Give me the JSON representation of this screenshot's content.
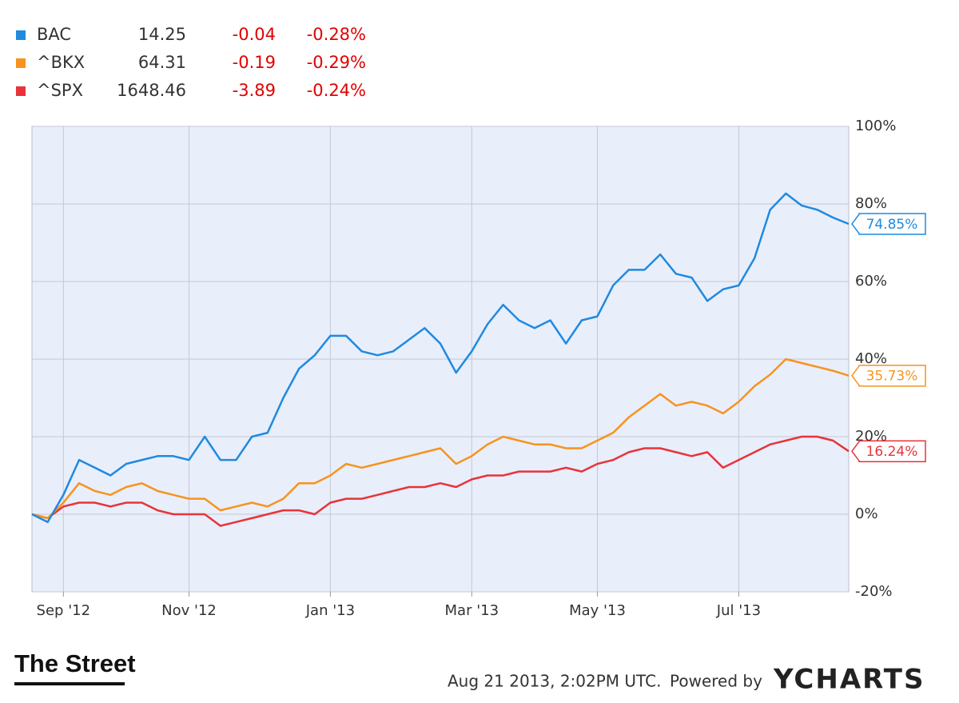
{
  "chart_data": {
    "type": "line",
    "categories": [
      null,
      null,
      "Sep '12",
      null,
      null,
      null,
      null,
      null,
      null,
      null,
      "Nov '12",
      null,
      null,
      null,
      null,
      null,
      null,
      null,
      null,
      "Jan '13",
      null,
      null,
      null,
      null,
      null,
      null,
      null,
      null,
      "Mar '13",
      null,
      null,
      null,
      null,
      null,
      null,
      null,
      "May '13",
      null,
      null,
      null,
      null,
      null,
      null,
      null,
      null,
      "Jul '13",
      null,
      null,
      null,
      null,
      null,
      null,
      null
    ],
    "series": [
      {
        "name": "BAC",
        "color": "#1f8ae0",
        "price": 14.25,
        "change": -0.04,
        "change_pct": {
          "value": -0.28,
          "label": "-0.28%"
        },
        "last_label": "74.85%",
        "values": [
          0,
          -2,
          5,
          14,
          12,
          10,
          13,
          14,
          15,
          15,
          14,
          20,
          14,
          14,
          20,
          21,
          30,
          37.5,
          41,
          46,
          46,
          42,
          41,
          42,
          45,
          48,
          44,
          36.5,
          42,
          49,
          54,
          50,
          48,
          50,
          44,
          50,
          51,
          59,
          63,
          63,
          67,
          62,
          61,
          55,
          58,
          59,
          66,
          78.5,
          82.7,
          79.6,
          78.5,
          76.5,
          74.85
        ]
      },
      {
        "name": "^BKX",
        "color": "#f7931e",
        "price": 64.31,
        "change": -0.19,
        "change_pct": {
          "value": -0.29,
          "label": "-0.29%"
        },
        "last_label": "35.73%",
        "values": [
          0,
          -1,
          3,
          8,
          6,
          5,
          7,
          8,
          6,
          5,
          4,
          4,
          1,
          2,
          3,
          2,
          4,
          8,
          8,
          10,
          13,
          12,
          13,
          14,
          15,
          16,
          17,
          13,
          15,
          18,
          20,
          19,
          18,
          18,
          17,
          17,
          19,
          21,
          25,
          28,
          31,
          28,
          29,
          28,
          26,
          29,
          33,
          36,
          40,
          39,
          38,
          37,
          35.73
        ]
      },
      {
        "name": "^SPX",
        "color": "#e8333a",
        "price": 1648.46,
        "change": -3.89,
        "change_pct": {
          "value": -0.24,
          "label": "-0.24%"
        },
        "last_label": "16.24%",
        "values": [
          0,
          -1,
          2,
          3,
          3,
          2,
          3,
          3,
          1,
          0,
          0,
          0,
          -3,
          -2,
          -1,
          0,
          1,
          1,
          0,
          3,
          4,
          4,
          5,
          6,
          7,
          7,
          8,
          7,
          9,
          10,
          10,
          11,
          11,
          11,
          12,
          11,
          13,
          14,
          16,
          17,
          17,
          16,
          15,
          16,
          12,
          14,
          16,
          18,
          19,
          20,
          20,
          19,
          16.24
        ]
      }
    ],
    "ylim": [
      -20,
      100
    ],
    "yticks": [
      {
        "value": -20,
        "label": "-20%"
      },
      {
        "value": 0,
        "label": "0%"
      },
      {
        "value": 20,
        "label": "20%"
      },
      {
        "value": 40,
        "label": "40%"
      },
      {
        "value": 60,
        "label": "60%"
      },
      {
        "value": 80,
        "label": "80%"
      },
      {
        "value": 100,
        "label": "100%"
      }
    ],
    "grid": true
  },
  "footer": {
    "brand": "The Street",
    "timestamp": "Aug 21 2013, 2:02PM UTC.",
    "powered_by": "Powered by",
    "provider": "YCHARTS"
  }
}
